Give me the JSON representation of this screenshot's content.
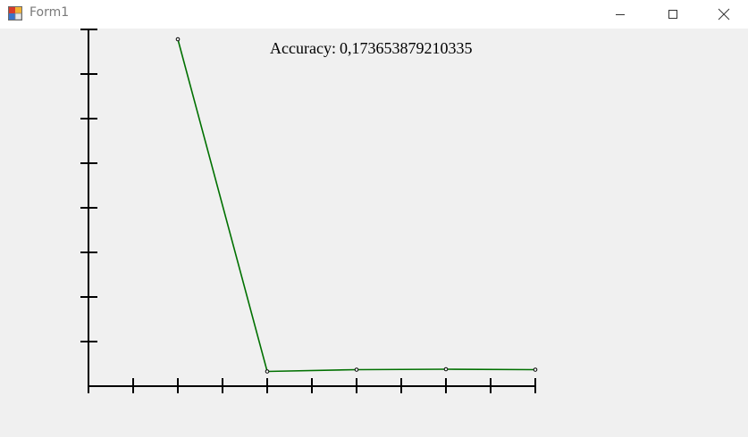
{
  "window": {
    "title": "Form1",
    "icon": "winforms-app-icon",
    "minimize_icon": "minimize-icon",
    "maximize_icon": "maximize-icon",
    "close_icon": "close-icon"
  },
  "accuracy": {
    "label": "Accuracy:",
    "value": "0,173653879210335"
  },
  "colors": {
    "line": "#007000",
    "axis": "#000000",
    "background": "#f0f0f0"
  },
  "chart_data": {
    "type": "line",
    "title": "",
    "xlabel": "",
    "ylabel": "",
    "x_ticks": 10,
    "y_ticks": 8,
    "xlim": [
      0,
      10
    ],
    "ylim": [
      0,
      8
    ],
    "grid": false,
    "series": [
      {
        "x": [
          2,
          4,
          6,
          8,
          10
        ],
        "values": [
          7.78,
          0.33,
          0.37,
          0.38,
          0.37
        ]
      }
    ]
  }
}
